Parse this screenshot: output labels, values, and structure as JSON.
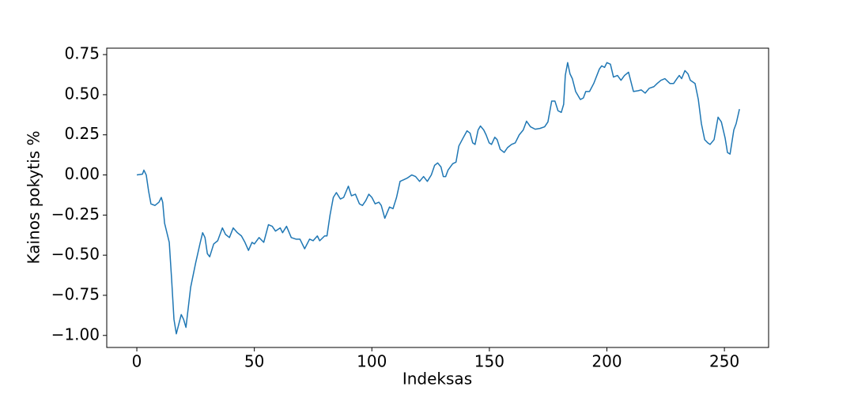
{
  "chart_data": {
    "type": "line",
    "xlabel": "Indeksas",
    "ylabel": "Kainos pokytis %",
    "x": [
      0,
      2.4,
      3,
      4,
      5,
      6,
      7.7,
      9.4,
      10.4,
      11,
      11.8,
      13.8,
      14.8,
      15.8,
      16.8,
      18.9,
      19.9,
      20.9,
      22.9,
      25,
      27,
      28,
      29,
      30,
      31,
      32.7,
      34.4,
      36.4,
      37.7,
      39.4,
      41,
      42.8,
      44.5,
      46,
      47.5,
      49,
      50,
      52,
      54,
      56,
      57.6,
      59,
      61,
      62,
      63.7,
      65.7,
      67.7,
      69.4,
      71.4,
      73.5,
      75,
      76.8,
      77.8,
      79.9,
      80.9,
      82.2,
      83.6,
      84.9,
      86.6,
      88,
      90,
      91.3,
      93,
      94.7,
      96,
      97.4,
      98.7,
      100,
      101.4,
      103,
      104,
      105.5,
      107.5,
      109,
      110.5,
      112,
      113.5,
      115,
      117,
      118.6,
      120.3,
      122,
      123.6,
      125.3,
      126.7,
      128,
      129.4,
      130.4,
      131.4,
      132.4,
      134.4,
      135.8,
      137,
      138.8,
      140.5,
      141.8,
      142.9,
      143.9,
      145.2,
      146.2,
      147.6,
      148.6,
      149.9,
      150.9,
      152.3,
      153.3,
      154.6,
      156.3,
      157.7,
      159.4,
      161,
      162.7,
      164.4,
      165.8,
      167.5,
      169.5,
      171.5,
      173.5,
      174.9,
      176.5,
      177.9,
      179.2,
      180.6,
      181.6,
      182.3,
      183.3,
      184.3,
      185.3,
      186.7,
      188.7,
      190,
      191,
      192.6,
      194.4,
      196.8,
      197.8,
      199,
      200,
      201.5,
      202.8,
      204.5,
      206,
      207.5,
      209.2,
      211.3,
      213.3,
      214.6,
      216.3,
      218,
      220,
      221.4,
      223,
      224.7,
      226.8,
      228.4,
      229.8,
      230.8,
      231.8,
      233.2,
      234.5,
      235.5,
      237.5,
      238.9,
      240.2,
      241.6,
      242.9,
      243.9,
      245.6,
      247.3,
      248.7,
      250.3,
      251.3,
      252.4,
      254,
      255,
      256.4
    ],
    "series": [
      {
        "color": "#1f77b4",
        "values": [
          0,
          0.005,
          0.03,
          0.0,
          -0.1,
          -0.18,
          -0.19,
          -0.17,
          -0.14,
          -0.17,
          -0.3,
          -0.42,
          -0.65,
          -0.9,
          -0.99,
          -0.87,
          -0.9,
          -0.95,
          -0.7,
          -0.55,
          -0.42,
          -0.36,
          -0.39,
          -0.49,
          -0.51,
          -0.43,
          -0.41,
          -0.33,
          -0.37,
          -0.39,
          -0.33,
          -0.36,
          -0.38,
          -0.42,
          -0.47,
          -0.42,
          -0.43,
          -0.39,
          -0.42,
          -0.31,
          -0.32,
          -0.35,
          -0.33,
          -0.36,
          -0.32,
          -0.39,
          -0.4,
          -0.4,
          -0.46,
          -0.4,
          -0.41,
          -0.38,
          -0.41,
          -0.38,
          -0.38,
          -0.25,
          -0.14,
          -0.11,
          -0.15,
          -0.14,
          -0.07,
          -0.13,
          -0.12,
          -0.18,
          -0.19,
          -0.16,
          -0.12,
          -0.14,
          -0.18,
          -0.17,
          -0.19,
          -0.27,
          -0.2,
          -0.21,
          -0.14,
          -0.04,
          -0.03,
          -0.02,
          0.0,
          -0.01,
          -0.04,
          -0.01,
          -0.04,
          0.0,
          0.06,
          0.075,
          0.05,
          -0.01,
          -0.01,
          0.03,
          0.07,
          0.08,
          0.18,
          0.23,
          0.275,
          0.26,
          0.2,
          0.19,
          0.28,
          0.305,
          0.28,
          0.25,
          0.2,
          0.19,
          0.235,
          0.22,
          0.16,
          0.14,
          0.17,
          0.19,
          0.2,
          0.25,
          0.28,
          0.335,
          0.3,
          0.285,
          0.29,
          0.3,
          0.33,
          0.46,
          0.46,
          0.4,
          0.39,
          0.44,
          0.62,
          0.7,
          0.63,
          0.6,
          0.52,
          0.47,
          0.48,
          0.52,
          0.52,
          0.57,
          0.66,
          0.68,
          0.67,
          0.7,
          0.69,
          0.61,
          0.62,
          0.59,
          0.62,
          0.64,
          0.52,
          0.525,
          0.53,
          0.51,
          0.54,
          0.55,
          0.57,
          0.59,
          0.6,
          0.57,
          0.57,
          0.6,
          0.62,
          0.6,
          0.65,
          0.63,
          0.59,
          0.57,
          0.47,
          0.32,
          0.22,
          0.2,
          0.19,
          0.22,
          0.36,
          0.33,
          0.23,
          0.14,
          0.13,
          0.28,
          0.32,
          0.41
        ]
      }
    ],
    "xlim": [
      -12.8,
      268.8
    ],
    "xticks": [
      0,
      50,
      100,
      150,
      200,
      250
    ],
    "ylim": [
      -1.075,
      0.79
    ],
    "yticks": [
      {
        "value": -1.0,
        "label": "−1.00"
      },
      {
        "value": -0.75,
        "label": "−0.75"
      },
      {
        "value": -0.5,
        "label": "−0.50"
      },
      {
        "value": -0.25,
        "label": "−0.25"
      },
      {
        "value": 0,
        "label": "0.00"
      },
      {
        "value": 0.25,
        "label": "0.25"
      },
      {
        "value": 0.5,
        "label": "0.50"
      },
      {
        "value": 0.75,
        "label": "0.75"
      }
    ],
    "grid": false
  }
}
